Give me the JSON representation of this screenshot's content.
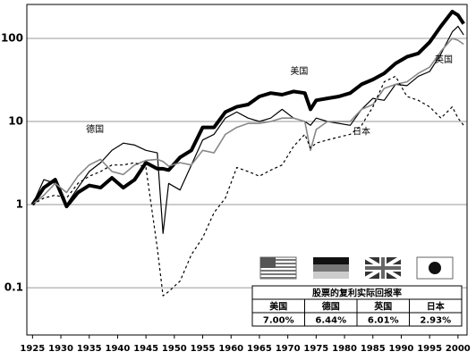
{
  "chart_data": {
    "type": "line",
    "x": [
      1925,
      1927,
      1929,
      1931,
      1933,
      1935,
      1937,
      1939,
      1941,
      1943,
      1945,
      1947,
      1948,
      1949,
      1951,
      1953,
      1955,
      1957,
      1959,
      1961,
      1963,
      1965,
      1967,
      1969,
      1971,
      1973,
      1974,
      1975,
      1977,
      1979,
      1981,
      1983,
      1985,
      1987,
      1989,
      1991,
      1993,
      1995,
      1997,
      1999,
      2000,
      2001
    ],
    "series": [
      {
        "name": "美国",
        "color": "#000000",
        "width": 4,
        "dash": "none",
        "values": [
          1,
          1.6,
          2.0,
          0.95,
          1.4,
          1.7,
          1.6,
          2.1,
          1.6,
          2.0,
          3.2,
          2.7,
          2.7,
          2.6,
          3.7,
          4.5,
          8.5,
          8.5,
          13,
          15,
          16,
          20,
          22,
          21,
          23,
          22,
          14,
          18,
          19,
          20,
          22,
          28,
          32,
          38,
          50,
          60,
          66,
          90,
          140,
          210,
          190,
          150
        ]
      },
      {
        "name": "德国",
        "color": "#000000",
        "width": 1.2,
        "dash": "none",
        "values": [
          1,
          2.0,
          1.8,
          1.0,
          1.6,
          2.5,
          3.2,
          4.5,
          5.5,
          5.2,
          4.5,
          4.2,
          0.45,
          1.8,
          1.5,
          3.0,
          6,
          7,
          11,
          13,
          11,
          10,
          11,
          14,
          11,
          10,
          9,
          11,
          10,
          9.5,
          9,
          14,
          19,
          18,
          28,
          27,
          35,
          40,
          65,
          120,
          140,
          110
        ]
      },
      {
        "name": "英国",
        "color": "#888888",
        "width": 1.6,
        "dash": "none",
        "values": [
          1,
          1.3,
          1.8,
          1.4,
          2.2,
          3.0,
          3.5,
          2.5,
          2.3,
          3.0,
          3.4,
          3.5,
          3.3,
          2.9,
          3.2,
          3.0,
          4.5,
          4.2,
          7,
          8.5,
          9.5,
          9.5,
          10,
          11,
          11,
          10,
          4.5,
          8,
          10,
          10,
          10,
          14,
          16,
          25,
          28,
          30,
          38,
          45,
          70,
          100,
          95,
          85
        ]
      },
      {
        "name": "日本",
        "color": "#000000",
        "width": 1.2,
        "dash": "3,3",
        "values": [
          1,
          1.2,
          1.3,
          1.2,
          1.8,
          2.2,
          2.5,
          3.0,
          3.0,
          3.2,
          2.8,
          0.3,
          0.08,
          0.09,
          0.12,
          0.25,
          0.4,
          0.8,
          1.2,
          2.8,
          2.5,
          2.2,
          2.6,
          3.0,
          5,
          7,
          4.8,
          5.5,
          6,
          6.5,
          7,
          9,
          15,
          30,
          35,
          20,
          18,
          15,
          11,
          15,
          11,
          9
        ]
      }
    ],
    "xlim": [
      1924,
      2001.6
    ],
    "ylim": [
      0.027,
      256
    ],
    "log_y": true,
    "xticks": [
      1925,
      1930,
      1935,
      1940,
      1945,
      1950,
      1955,
      1960,
      1965,
      1970,
      1975,
      1980,
      1985,
      1990,
      1995,
      2000
    ],
    "yticks": [
      0.1,
      1,
      10,
      100
    ],
    "grid": true,
    "annotations": [
      {
        "text": "美国",
        "x": 1972,
        "y": 40
      },
      {
        "text": "德国",
        "x": 1936,
        "y": 8
      },
      {
        "text": "英国",
        "x": 1997.5,
        "y": 55
      },
      {
        "text": "日本",
        "x": 1983,
        "y": 7.5
      }
    ],
    "table": {
      "title": "股票的复利实际回报率",
      "headers": [
        "美国",
        "德国",
        "英国",
        "日本"
      ],
      "values": [
        "7.00%",
        "6.44%",
        "6.01%",
        "2.93%"
      ]
    }
  }
}
